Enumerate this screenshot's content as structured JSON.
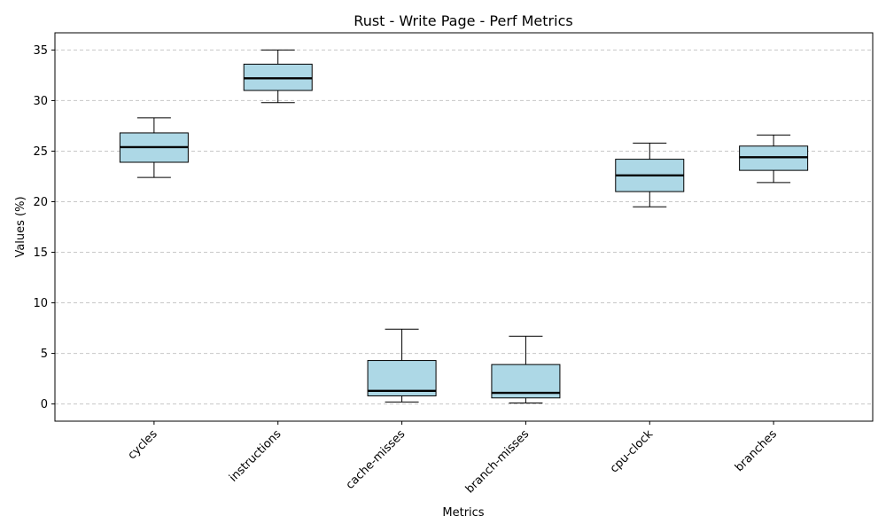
{
  "chart_data": {
    "type": "box",
    "title": "Rust - Write Page - Perf Metrics",
    "xlabel": "Metrics",
    "ylabel": "Values (%)",
    "ylim": [
      -1.7,
      36.7
    ],
    "yticks": [
      0,
      5,
      10,
      15,
      20,
      25,
      30,
      35
    ],
    "grid": "y-dashed",
    "box_fill": "#add8e6",
    "categories": [
      "cycles",
      "instructions",
      "cache-misses",
      "branch-misses",
      "cpu-clock",
      "branches"
    ],
    "boxes": [
      {
        "label": "cycles",
        "whisker_low": 22.4,
        "q1": 23.9,
        "median": 25.4,
        "q3": 26.8,
        "whisker_high": 28.3
      },
      {
        "label": "instructions",
        "whisker_low": 29.8,
        "q1": 31.0,
        "median": 32.2,
        "q3": 33.6,
        "whisker_high": 35.0
      },
      {
        "label": "cache-misses",
        "whisker_low": 0.2,
        "q1": 0.8,
        "median": 1.3,
        "q3": 4.3,
        "whisker_high": 7.4
      },
      {
        "label": "branch-misses",
        "whisker_low": 0.1,
        "q1": 0.6,
        "median": 1.1,
        "q3": 3.9,
        "whisker_high": 6.7
      },
      {
        "label": "cpu-clock",
        "whisker_low": 19.5,
        "q1": 21.0,
        "median": 22.6,
        "q3": 24.2,
        "whisker_high": 25.8
      },
      {
        "label": "branches",
        "whisker_low": 21.9,
        "q1": 23.1,
        "median": 24.4,
        "q3": 25.5,
        "whisker_high": 26.6
      }
    ]
  }
}
